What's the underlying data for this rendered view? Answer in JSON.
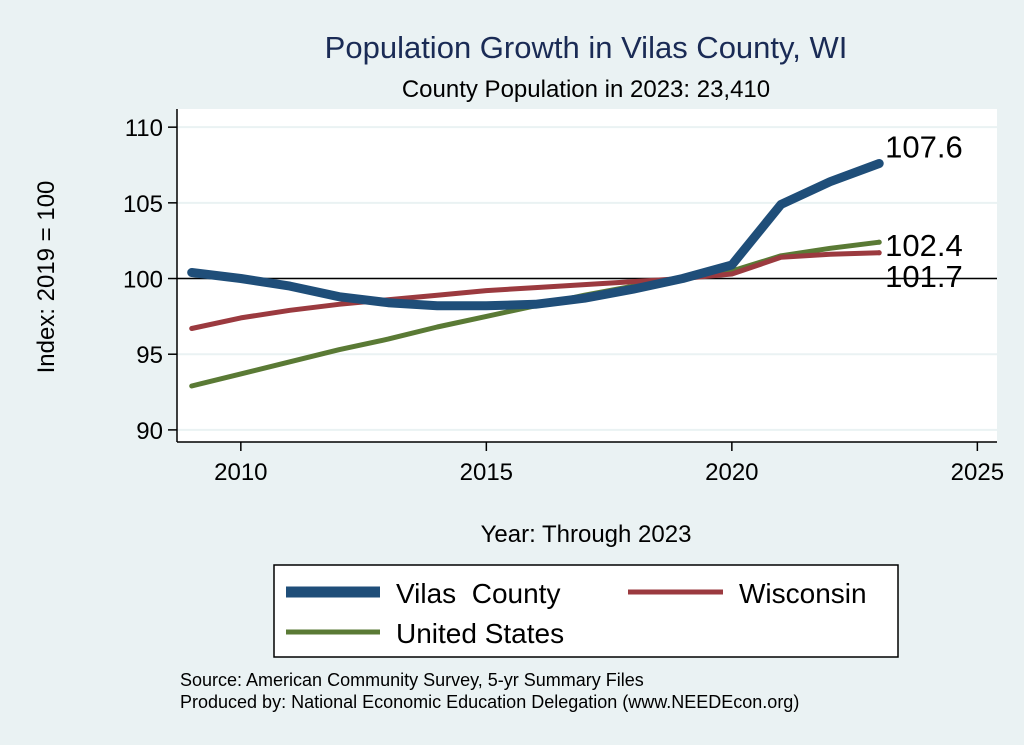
{
  "chart_data": {
    "type": "line",
    "title": "Population Growth in Vilas County, WI",
    "subtitle": "County Population in 2023: 23,410",
    "xlabel": "Year: Through 2023",
    "ylabel": "Index: 2019 = 100",
    "xlim": [
      2008.7,
      2025.4
    ],
    "ylim": [
      89.2,
      111.2
    ],
    "xticks": [
      2010,
      2015,
      2020,
      2025
    ],
    "yticks": [
      90,
      95,
      100,
      105,
      110
    ],
    "reference_line": 100,
    "grid": "horizontal",
    "series": [
      {
        "name": "Vilas  County",
        "color": "#1f4e79",
        "x": [
          2009,
          2010,
          2011,
          2012,
          2013,
          2014,
          2015,
          2016,
          2017,
          2018,
          2019,
          2020,
          2021,
          2022,
          2023
        ],
        "values": [
          100.4,
          100.0,
          99.5,
          98.8,
          98.4,
          98.2,
          98.2,
          98.3,
          98.7,
          99.3,
          100.0,
          100.9,
          104.9,
          106.4,
          107.6
        ],
        "end_label": "107.6"
      },
      {
        "name": "Wisconsin",
        "color": "#9b3a3f",
        "x": [
          2009,
          2010,
          2011,
          2012,
          2013,
          2014,
          2015,
          2016,
          2017,
          2018,
          2019,
          2020,
          2021,
          2022,
          2023
        ],
        "values": [
          96.7,
          97.4,
          97.9,
          98.3,
          98.6,
          98.9,
          99.2,
          99.4,
          99.6,
          99.8,
          100.0,
          100.3,
          101.4,
          101.6,
          101.7
        ],
        "end_label": "101.7"
      },
      {
        "name": "United States",
        "color": "#5a7a35",
        "x": [
          2009,
          2010,
          2011,
          2012,
          2013,
          2014,
          2015,
          2016,
          2017,
          2018,
          2019,
          2020,
          2021,
          2022,
          2023
        ],
        "values": [
          92.9,
          93.7,
          94.5,
          95.3,
          96.0,
          96.8,
          97.5,
          98.2,
          98.9,
          99.5,
          100.0,
          100.5,
          101.5,
          102.0,
          102.4
        ],
        "end_label": "102.4"
      }
    ],
    "legend": {
      "placement": "bottom",
      "items": [
        "Vilas  County",
        "Wisconsin",
        "United States"
      ]
    }
  },
  "source_line1": "Source: American Community Survey, 5-yr Summary Files",
  "source_line2": "Produced by: National Economic Education Delegation (www.NEEDEcon.org)",
  "colors": {
    "background": "#eaf2f3",
    "plot_background": "#ffffff",
    "grid": "#eaf2f3",
    "title": "#1a2b55"
  }
}
